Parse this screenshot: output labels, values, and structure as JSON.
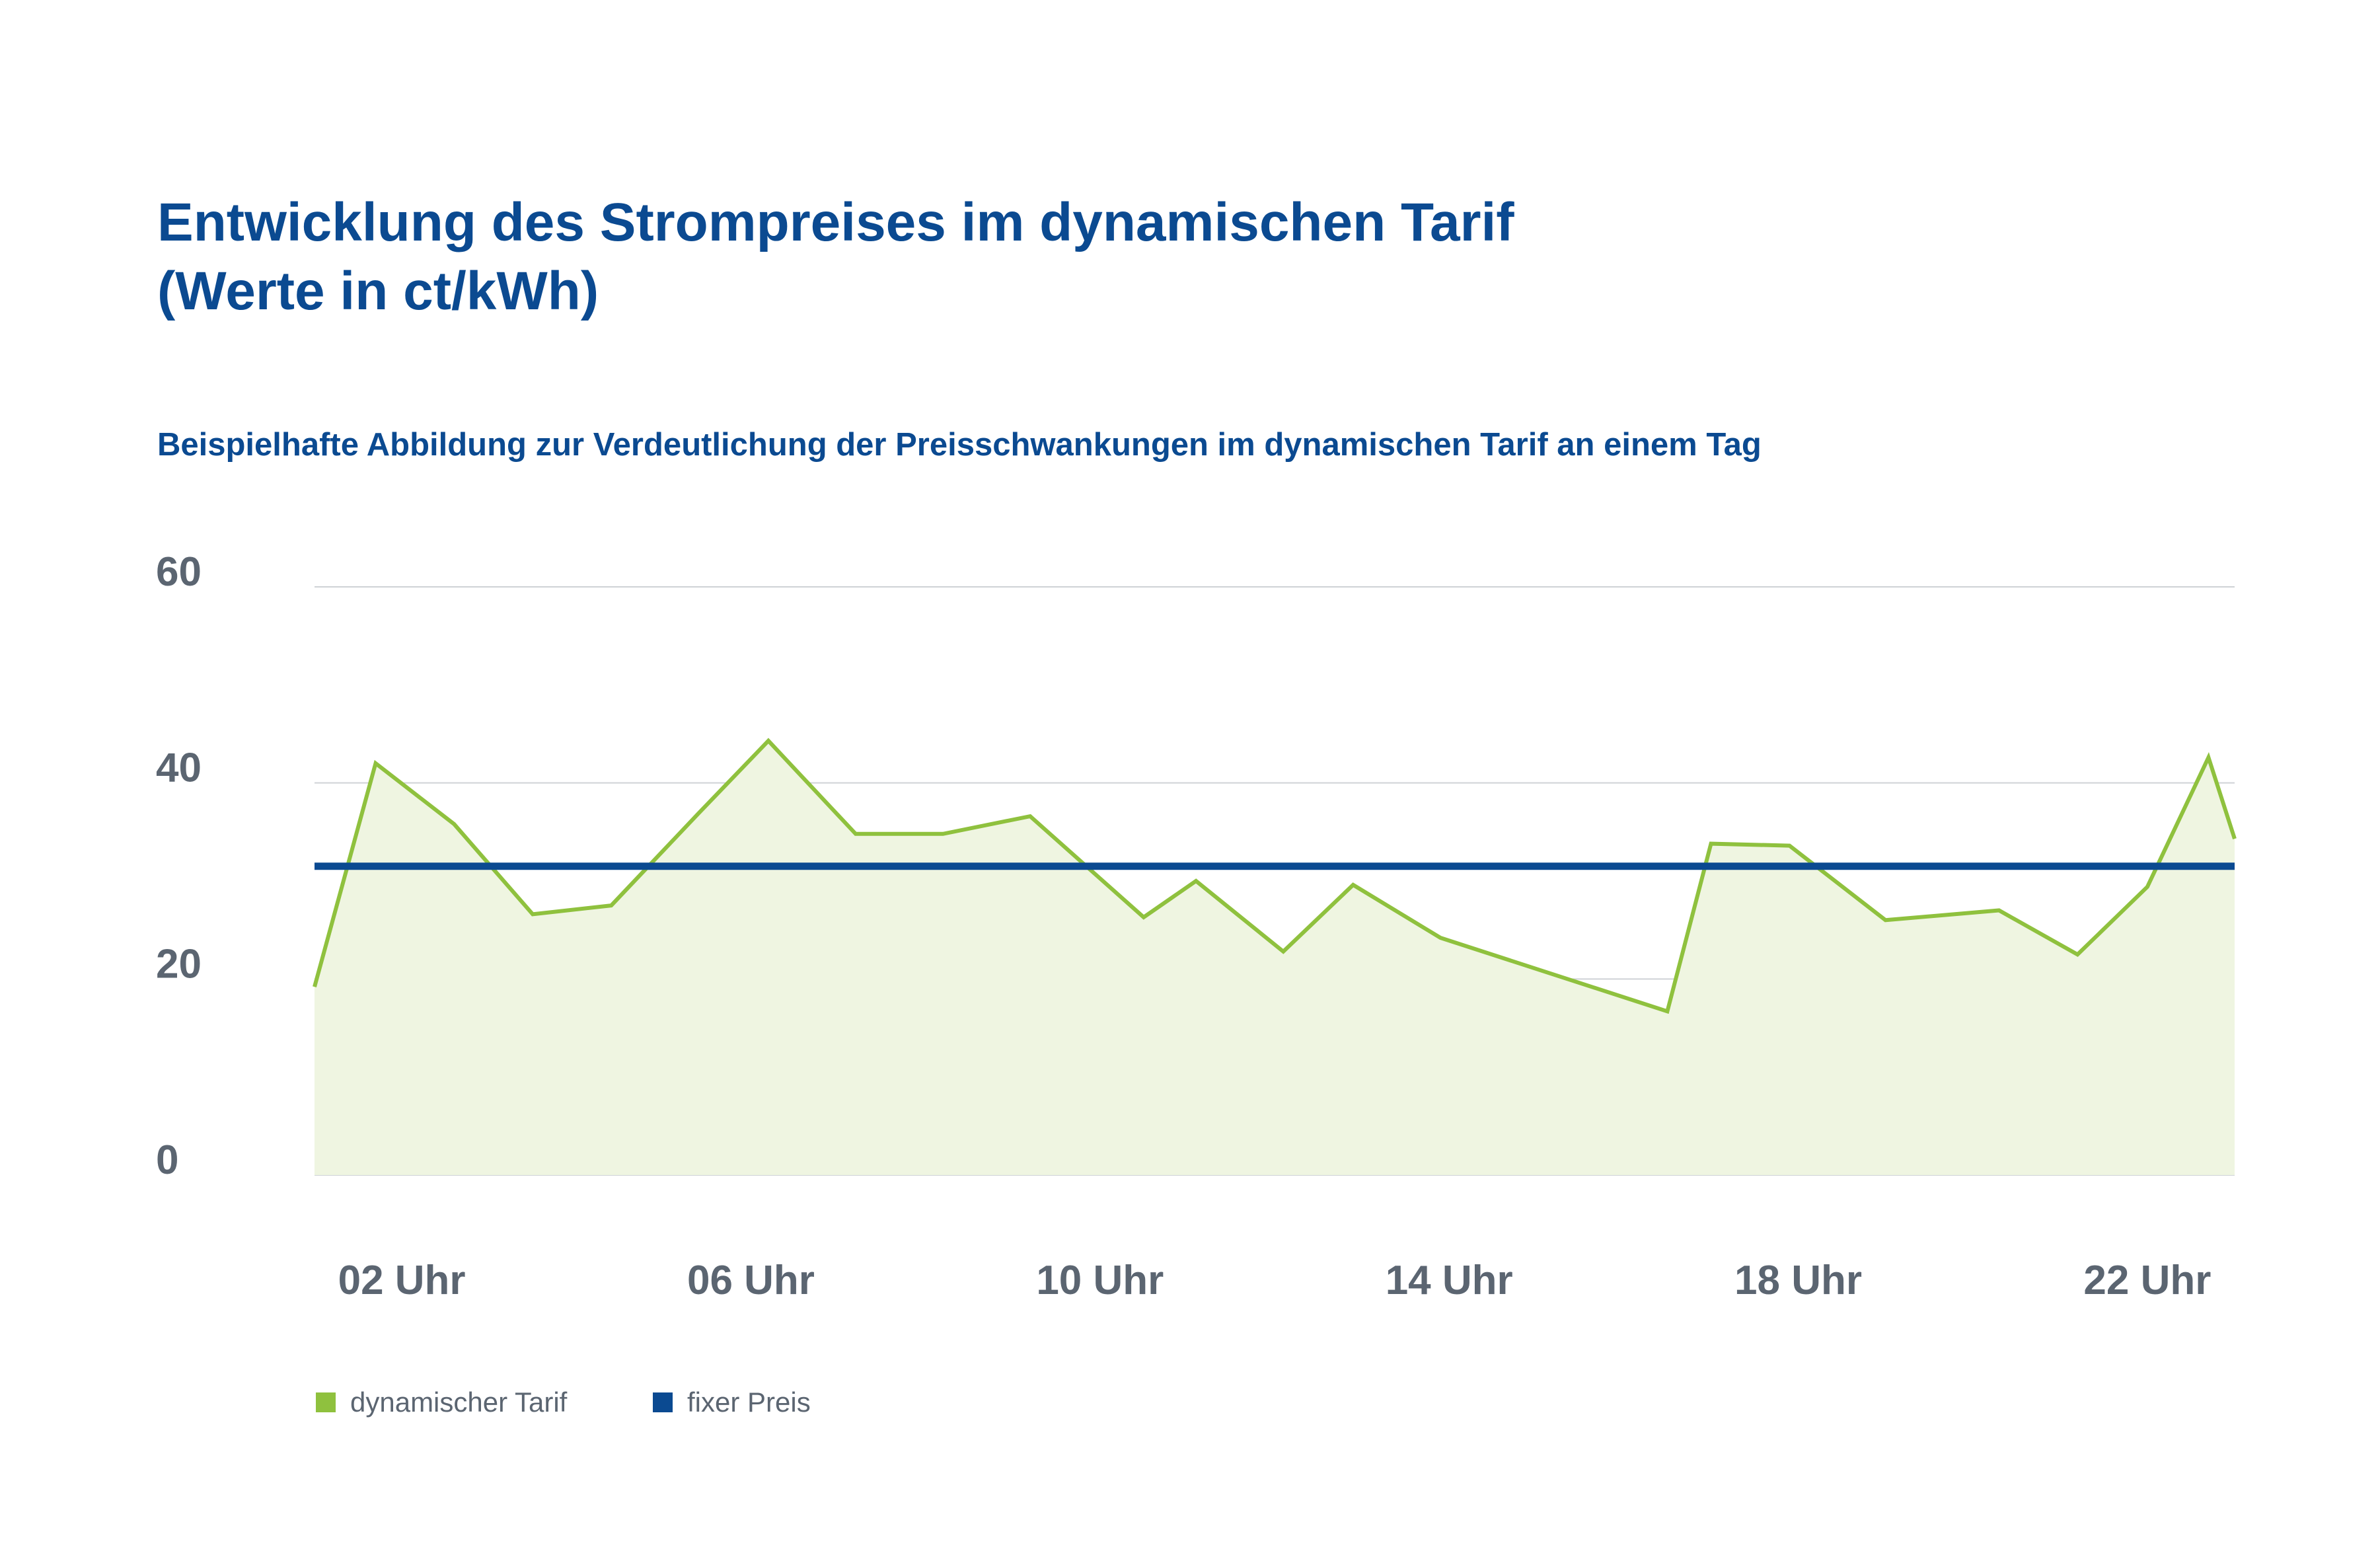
{
  "title_line1": "Entwicklung des Strompreises im dynamischen Tarif",
  "title_line2": "(Werte in ct/kWh)",
  "subtitle": "Beispielhafte Abbildung zur Verdeutlichung der Preisschwankungen im dynamischen Tarif an einem Tag",
  "colors": {
    "dynamic_line": "#8fc13e",
    "dynamic_fill": "#eff5e1",
    "fixed_line": "#0b4a91",
    "text_blue": "#0b4a91",
    "axis_text": "#5b6571",
    "grid": "#cfd2d6"
  },
  "chart_data": {
    "type": "line",
    "title": "Entwicklung des Strompreises im dynamischen Tarif (Werte in ct/kWh)",
    "subtitle": "Beispielhafte Abbildung zur Verdeutlichung der Preisschwankungen im dynamischen Tarif an einem Tag",
    "xlabel": "",
    "ylabel": "",
    "ylim": [
      0,
      60
    ],
    "yticks": [
      0,
      20,
      40,
      60
    ],
    "xlim": [
      1,
      23
    ],
    "xticks": [
      2,
      6,
      10,
      14,
      18,
      22
    ],
    "xtick_labels": [
      "02 Uhr",
      "06 Uhr",
      "10 Uhr",
      "14 Uhr",
      "18 Uhr",
      "22 Uhr"
    ],
    "grid": true,
    "legend_position": "bottom-left",
    "series": [
      {
        "name": "dynamischer Tarif",
        "style": "line-with-area",
        "x": [
          1,
          1.7,
          2.6,
          3.5,
          4.4,
          5.4,
          6.2,
          7.2,
          8.2,
          9.2,
          10.5,
          11.1,
          12.1,
          12.9,
          13.9,
          16.5,
          17.0,
          17.9,
          19.0,
          20.3,
          21.2,
          22.0,
          22.7,
          23.0
        ],
        "y": [
          19.2,
          42.0,
          35.8,
          26.6,
          27.5,
          36.9,
          44.3,
          34.8,
          34.8,
          36.6,
          26.3,
          30.0,
          22.8,
          29.6,
          24.2,
          16.7,
          33.8,
          33.6,
          26.0,
          27.0,
          22.5,
          29.4,
          42.6,
          34.3
        ]
      },
      {
        "name": "fixer Preis",
        "style": "line",
        "x": [
          1,
          23
        ],
        "y": [
          31.5,
          31.5
        ]
      }
    ]
  }
}
